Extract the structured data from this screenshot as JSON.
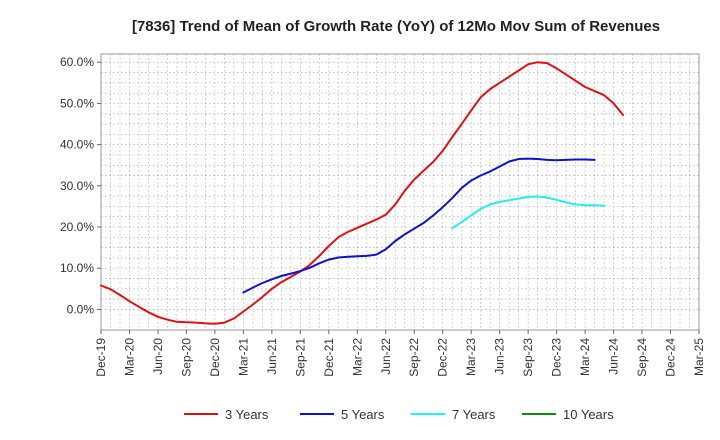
{
  "chart_data": {
    "type": "line",
    "title": "[7836]  Trend of Mean of Growth Rate (YoY) of 12Mo Mov Sum of Revenues",
    "xlabel": "",
    "ylabel": "",
    "ylim": [
      -5,
      62
    ],
    "yticks": [
      0,
      10,
      20,
      30,
      40,
      50,
      60
    ],
    "ytick_labels": [
      "0.0%",
      "10.0%",
      "20.0%",
      "30.0%",
      "40.0%",
      "50.0%",
      "60.0%"
    ],
    "xticks": [
      "Dec-19",
      "Mar-20",
      "Jun-20",
      "Sep-20",
      "Dec-20",
      "Mar-21",
      "Jun-21",
      "Sep-21",
      "Dec-21",
      "Mar-22",
      "Jun-22",
      "Sep-22",
      "Dec-22",
      "Mar-23",
      "Jun-23",
      "Sep-23",
      "Dec-23",
      "Mar-24",
      "Jun-24",
      "Sep-24",
      "Dec-24",
      "Mar-25"
    ],
    "grid": true,
    "legend_position": "bottom",
    "series": [
      {
        "name": "3 Years",
        "color": "#dd1111",
        "start_index": 0,
        "values": [
          5.8,
          4.9,
          3.5,
          2.0,
          0.6,
          -0.7,
          -1.8,
          -2.5,
          -3.0,
          -3.1,
          -3.2,
          -3.4,
          -3.5,
          -3.2,
          -2.2,
          -0.5,
          1.2,
          3.0,
          5.0,
          6.6,
          7.9,
          9.2,
          10.8,
          13.0,
          15.4,
          17.5,
          18.8,
          19.8,
          20.8,
          21.8,
          23.0,
          25.5,
          28.8,
          31.5,
          33.7,
          35.8,
          38.5,
          41.8,
          45.0,
          48.3,
          51.5,
          53.5,
          55.0,
          56.5,
          58.0,
          59.5,
          60.0,
          59.8,
          58.5,
          57.0,
          55.5,
          54.0,
          53.0,
          52.0,
          50.0,
          47.2
        ]
      },
      {
        "name": "5 Years",
        "color": "#1111cc",
        "start_index": 15,
        "values": [
          4.1,
          5.3,
          6.4,
          7.3,
          8.1,
          8.7,
          9.3,
          10.1,
          11.2,
          12.1,
          12.6,
          12.8,
          12.9,
          13.0,
          13.3,
          14.6,
          16.6,
          18.2,
          19.6,
          21.0,
          22.8,
          24.8,
          27.0,
          29.5,
          31.3,
          32.5,
          33.5,
          34.7,
          35.9,
          36.5,
          36.6,
          36.5,
          36.3,
          36.2,
          36.3,
          36.4,
          36.4,
          36.3
        ]
      },
      {
        "name": "7 Years",
        "color": "#22eeee",
        "start_index": 37,
        "values": [
          19.7,
          21.2,
          22.8,
          24.4,
          25.5,
          26.1,
          26.5,
          26.9,
          27.3,
          27.4,
          27.1,
          26.6,
          26.0,
          25.5,
          25.3,
          25.3,
          25.2
        ]
      },
      {
        "name": "10 Years",
        "color": "#118811",
        "start_index": 0,
        "values": []
      }
    ]
  }
}
